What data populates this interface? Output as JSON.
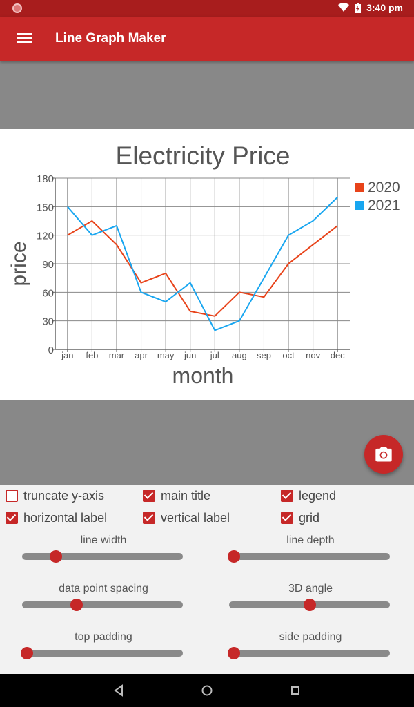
{
  "status_bar": {
    "time": "3:40 pm"
  },
  "app_bar": {
    "title": "Line Graph Maker"
  },
  "chart_data": {
    "type": "line",
    "title": "Electricity Price",
    "xlabel": "month",
    "ylabel": "price",
    "categories": [
      "jan",
      "feb",
      "mar",
      "apr",
      "may",
      "jun",
      "jul",
      "aug",
      "sep",
      "oct",
      "nov",
      "dec"
    ],
    "series": [
      {
        "name": "2020",
        "color": "#e8431a",
        "values": [
          120,
          135,
          110,
          70,
          80,
          40,
          35,
          60,
          55,
          90,
          110,
          130
        ]
      },
      {
        "name": "2021",
        "color": "#18a6f0",
        "values": [
          150,
          120,
          130,
          60,
          50,
          70,
          20,
          30,
          75,
          120,
          135,
          160
        ]
      }
    ],
    "ylim": [
      0,
      180
    ],
    "yticks": [
      0,
      30,
      60,
      90,
      120,
      150,
      180
    ],
    "grid": true,
    "legend": "top-right"
  },
  "controls": {
    "checkboxes": [
      {
        "label": "truncate y-axis",
        "checked": false
      },
      {
        "label": "main title",
        "checked": true
      },
      {
        "label": "legend",
        "checked": true
      },
      {
        "label": "horizontal label",
        "checked": true
      },
      {
        "label": "vertical label",
        "checked": true
      },
      {
        "label": "grid",
        "checked": true
      }
    ],
    "sliders": [
      {
        "label": "line width",
        "value": 0.21
      },
      {
        "label": "line depth",
        "value": 0.03
      },
      {
        "label": "data point spacing",
        "value": 0.34
      },
      {
        "label": "3D angle",
        "value": 0.5
      },
      {
        "label": "top padding",
        "value": 0.03
      },
      {
        "label": "side padding",
        "value": 0.03
      }
    ]
  },
  "colors": {
    "accent": "#c62828",
    "status_bar": "#a81d1d"
  },
  "icons": {
    "menu": "hamburger-menu",
    "camera": "camera",
    "back": "triangle-back",
    "home": "circle-home",
    "recents": "square-recents"
  }
}
